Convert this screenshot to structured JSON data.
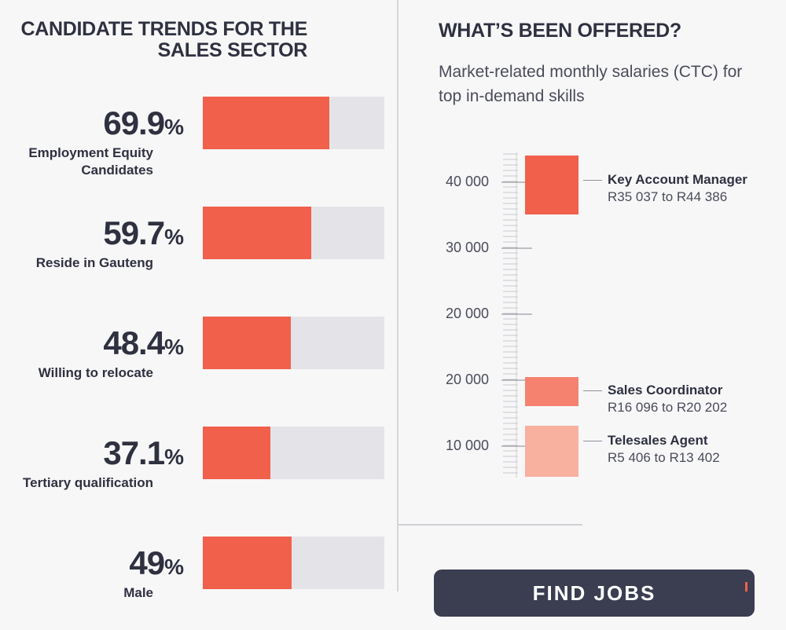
{
  "left": {
    "title_line1": "CANDIDATE TRENDS FOR THE",
    "title_line2": "SALES SECTOR"
  },
  "right": {
    "title": "WHAT’S BEEN OFFERED?",
    "subtitle": "Market-related monthly salaries (CTC) for top in-demand skills"
  },
  "find_jobs_button": {
    "label": "FIND JOBS"
  },
  "chart_data": [
    {
      "type": "bar",
      "orientation": "horizontal",
      "title": "CANDIDATE TRENDS FOR THE SALES SECTOR",
      "unit": "%",
      "xlim": [
        0,
        100
      ],
      "categories": [
        "Employment Equity Candidates",
        "Reside in Gauteng",
        "Willing to relocate",
        "Tertiary qualification",
        "Male"
      ],
      "label_lines": [
        [
          "Employment Equity",
          "Candidates"
        ],
        [
          "Reside in Gauteng"
        ],
        [
          "Willing to relocate"
        ],
        [
          "Tertiary qualification"
        ],
        [
          "Male"
        ]
      ],
      "values": [
        69.9,
        59.7,
        48.4,
        37.1,
        49
      ],
      "value_labels": [
        "69.9",
        "59.7",
        "48.4",
        "37.1",
        "49"
      ],
      "colors": {
        "fill": "#f0604b",
        "track": "#e4e4e8"
      }
    },
    {
      "type": "range",
      "title": "WHAT’S BEEN OFFERED?",
      "subtitle": "Market-related monthly salaries (CTC) for top in-demand skills",
      "tick_labels": [
        "40 000",
        "30 000",
        "20 000",
        "20 000",
        "10 000"
      ],
      "series": [
        {
          "name": "Key Account Manager",
          "range_label": "R35 037 to R44 386",
          "low": 35037,
          "high": 44386,
          "color": "#f0604b"
        },
        {
          "name": "Sales Coordinator",
          "range_label": "R16 096 to R20 202",
          "low": 16096,
          "high": 20202,
          "color": "#f4826f"
        },
        {
          "name": "Telesales Agent",
          "range_label": "R5 406 to R13 402",
          "low": 5406,
          "high": 13402,
          "color": "#f8b09f"
        }
      ]
    }
  ]
}
